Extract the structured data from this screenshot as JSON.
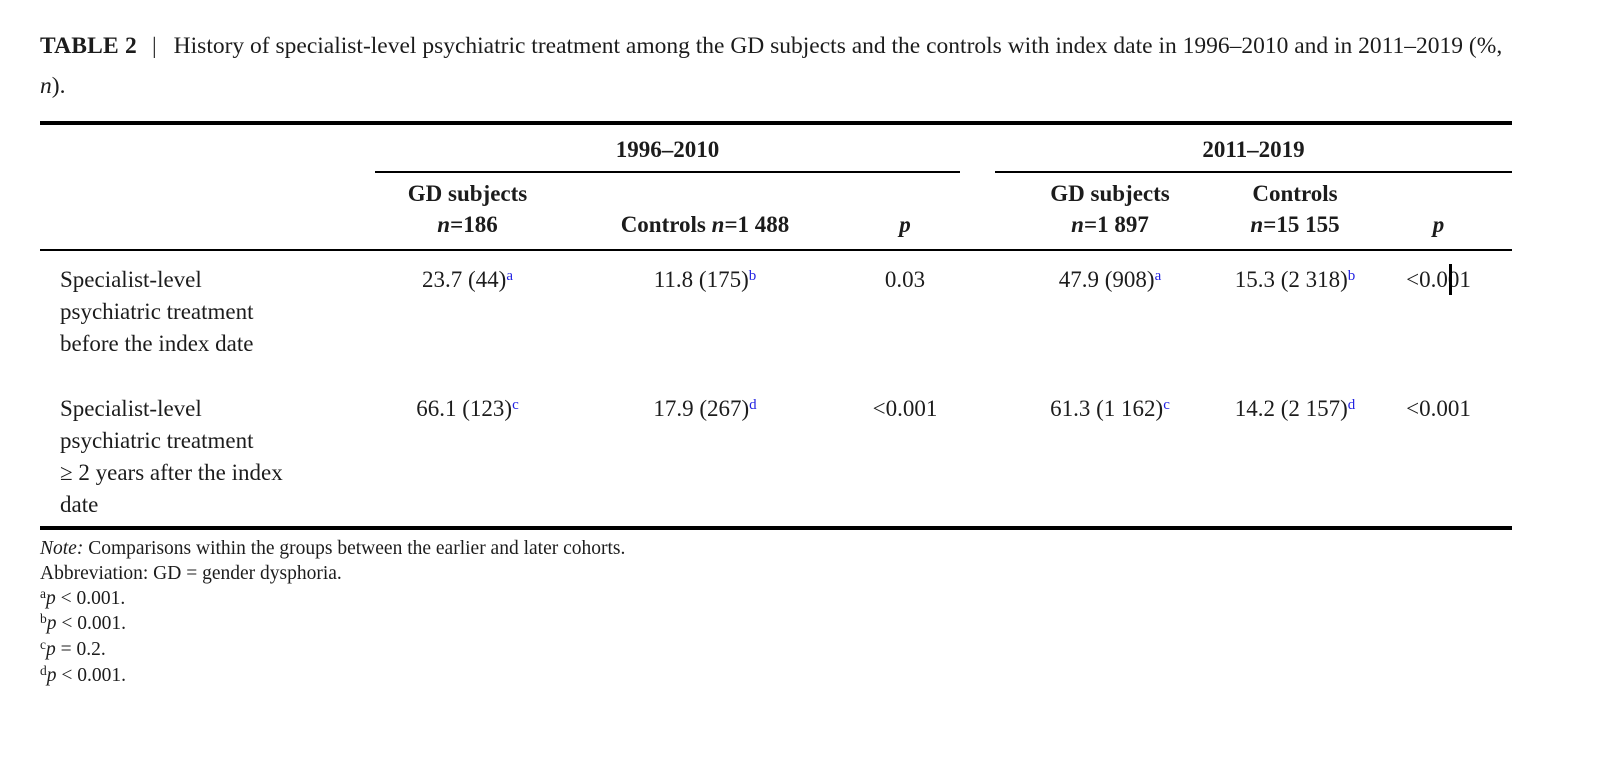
{
  "colors": {
    "text": "#1C1C1C",
    "cell_superscript": "#2222E2",
    "rule": "#000000"
  },
  "caption": {
    "label": "TABLE 2",
    "separator": "|",
    "body_before_italic": "History of specialist-level psychiatric treatment among the GD subjects and the controls with index date in 1996–2010 and in 2011–2019 (%, ",
    "italic_n": "n",
    "body_after_italic": ")."
  },
  "table": {
    "groups": [
      {
        "label": "1996–2010"
      },
      {
        "label": "2011–2019"
      }
    ],
    "subheaders": {
      "gd1_line1": "GD subjects",
      "gd1_n": "n",
      "gd1_value": "=186",
      "ctrl1_prefix": "Controls ",
      "ctrl1_n": "n",
      "ctrl1_value": "=1 488",
      "p1": "p",
      "gd2_line1": "GD subjects",
      "gd2_n": "n",
      "gd2_value": "=1 897",
      "ctrl2_line1": "Controls",
      "ctrl2_n": "n",
      "ctrl2_value": "=15 155",
      "p2": "p"
    },
    "rows": [
      {
        "label_lines": [
          "Specialist-level",
          "psychiatric treatment",
          "before the index date"
        ],
        "gd1996": "23.7 (44)",
        "gd1996_sup": "a",
        "controls1996": "11.8 (175)",
        "controls1996_sup": "b",
        "p1996": "0.03",
        "gd2011": "47.9 (908)",
        "gd2011_sup": "a",
        "controls2011": "15.3 (2 318)",
        "controls2011_sup": "b",
        "p2011": "<0.001"
      },
      {
        "label_lines": [
          "Specialist-level",
          "psychiatric treatment",
          "≥ 2 years after the index",
          "date"
        ],
        "gd1996": "66.1 (123)",
        "gd1996_sup": "c",
        "controls1996": "17.9 (267)",
        "controls1996_sup": "d",
        "p1996": "<0.001",
        "gd2011": "61.3 (1 162)",
        "gd2011_sup": "c",
        "controls2011": "14.2 (2 157)",
        "controls2011_sup": "d",
        "p2011": "<0.001"
      }
    ]
  },
  "footnotes": {
    "note_label": "Note:",
    "note_text": " Comparisons within the groups between the earlier and later cohorts.",
    "abbreviation_text": "Abbreviation: GD = gender dysphoria.",
    "items": [
      {
        "marker": "a",
        "symbol": "p",
        "value": " < 0.001."
      },
      {
        "marker": "b",
        "symbol": "p",
        "value": " < 0.001."
      },
      {
        "marker": "c",
        "symbol": "p",
        "value": " = 0.2."
      },
      {
        "marker": "d",
        "symbol": "p",
        "value": " < 0.001."
      }
    ]
  }
}
